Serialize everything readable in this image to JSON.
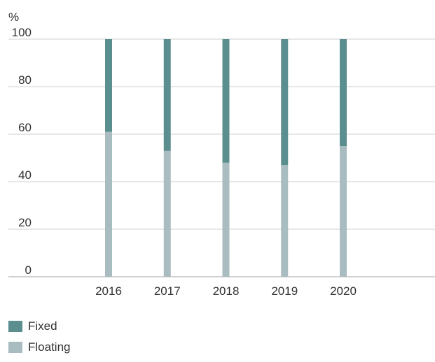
{
  "chart_data": {
    "type": "bar",
    "stacked": true,
    "categories": [
      "2016",
      "2017",
      "2018",
      "2019",
      "2020"
    ],
    "series": [
      {
        "name": "Floating",
        "values": [
          61,
          53,
          48,
          47,
          55
        ],
        "color": "#a9bcbf"
      },
      {
        "name": "Fixed",
        "values": [
          39,
          47,
          52,
          53,
          45
        ],
        "color": "#5a8e8f"
      }
    ],
    "title": "",
    "xlabel": "",
    "ylabel": "%",
    "ylim": [
      0,
      100
    ],
    "yticks": [
      "0",
      "20",
      "40",
      "60",
      "80",
      "100"
    ],
    "grid": true,
    "legend_placement": "bottom-left"
  },
  "legend": [
    {
      "label": "Fixed",
      "color": "#5a8e8f"
    },
    {
      "label": "Floating",
      "color": "#a9bcbf"
    }
  ]
}
